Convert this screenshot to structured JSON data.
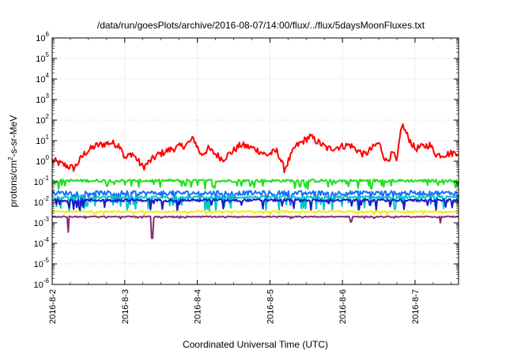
{
  "chart_data": {
    "type": "line",
    "title": "/data/run/goesPlots/archive/2016-08-07/14:00/flux/../flux/5daysMoonFluxes.txt",
    "xlabel": "Coordinated Universal Time (UTC)",
    "ylabel_parts": [
      "protons/cm",
      "2",
      "-s-sr-MeV"
    ],
    "y_scale": "log",
    "y_exponent_range": [
      -6,
      6
    ],
    "y_tick_labels": [
      {
        "base": "10",
        "exp": "-6"
      },
      {
        "base": "10",
        "exp": "-5"
      },
      {
        "base": "10",
        "exp": "-4"
      },
      {
        "base": "10",
        "exp": "-3"
      },
      {
        "base": "10",
        "exp": "-2"
      },
      {
        "base": "10",
        "exp": "-1"
      },
      {
        "base": "10",
        "exp": "0"
      },
      {
        "base": "10",
        "exp": "1"
      },
      {
        "base": "10",
        "exp": "2"
      },
      {
        "base": "10",
        "exp": "3"
      },
      {
        "base": "10",
        "exp": "4"
      },
      {
        "base": "10",
        "exp": "5"
      },
      {
        "base": "10",
        "exp": "6"
      }
    ],
    "x_range_days": [
      0,
      5.6
    ],
    "x_tick_labels": [
      "2016-8-2",
      "2016-8-3",
      "2016-8-4",
      "2016-8-5",
      "2016-8-6",
      "2016-8-7"
    ],
    "grid": true,
    "legend": "none",
    "series": [
      {
        "color": "#ff0000",
        "base_log": 0.55,
        "noise": 0.35,
        "knots": [
          [
            0,
            0.05
          ],
          [
            0.1,
            -0.1
          ],
          [
            0.3,
            -0.35
          ],
          [
            0.45,
            0.4
          ],
          [
            0.6,
            0.75
          ],
          [
            0.8,
            0.9
          ],
          [
            0.95,
            0.75
          ],
          [
            1.0,
            0.1
          ],
          [
            1.1,
            0.4
          ],
          [
            1.25,
            -0.3
          ],
          [
            1.45,
            0.3
          ],
          [
            1.65,
            0.6
          ],
          [
            1.85,
            0.8
          ],
          [
            1.95,
            1.1
          ],
          [
            2.05,
            0.3
          ],
          [
            2.15,
            0.6
          ],
          [
            2.35,
            0.1
          ],
          [
            2.6,
            0.8
          ],
          [
            2.8,
            0.6
          ],
          [
            2.95,
            0.3
          ],
          [
            3.1,
            0.5
          ],
          [
            3.2,
            -0.4
          ],
          [
            3.35,
            0.7
          ],
          [
            3.55,
            1.2
          ],
          [
            3.8,
            0.6
          ],
          [
            4.1,
            0.8
          ],
          [
            4.3,
            0.3
          ],
          [
            4.4,
            0.6
          ],
          [
            4.5,
            0.9
          ],
          [
            4.6,
            0.0
          ],
          [
            4.7,
            0.4
          ],
          [
            4.75,
            -0.1
          ],
          [
            4.8,
            1.4
          ],
          [
            4.82,
            1.8
          ],
          [
            4.9,
            1.2
          ],
          [
            5.0,
            0.6
          ],
          [
            5.2,
            0.8
          ],
          [
            5.3,
            0.3
          ],
          [
            5.45,
            0.35
          ],
          [
            5.6,
            0.45
          ]
        ]
      },
      {
        "color": "#1fe01f",
        "base_log": -0.95,
        "noise": 0.14,
        "dips": 0.25
      },
      {
        "color": "#1a6dff",
        "base_log": -1.55,
        "noise": 0.22,
        "dips": 0.4
      },
      {
        "color": "#00c8c8",
        "base_log": -1.75,
        "noise": 0.12,
        "dips": 0.45
      },
      {
        "color": "#1818c8",
        "base_log": -1.9,
        "noise": 0.12,
        "dips": 0.35
      },
      {
        "color": "#f0f000",
        "base_log": -2.45,
        "noise": 0.06,
        "dips": 0.1
      },
      {
        "color": "#8a2b73",
        "base_log": -2.7,
        "noise": 0.05,
        "dips": 0.05,
        "spikes": [
          [
            0.22,
            -3.45
          ],
          [
            1.38,
            -3.75
          ],
          [
            4.12,
            -2.95
          ],
          [
            5.35,
            -3.0
          ]
        ]
      }
    ]
  }
}
